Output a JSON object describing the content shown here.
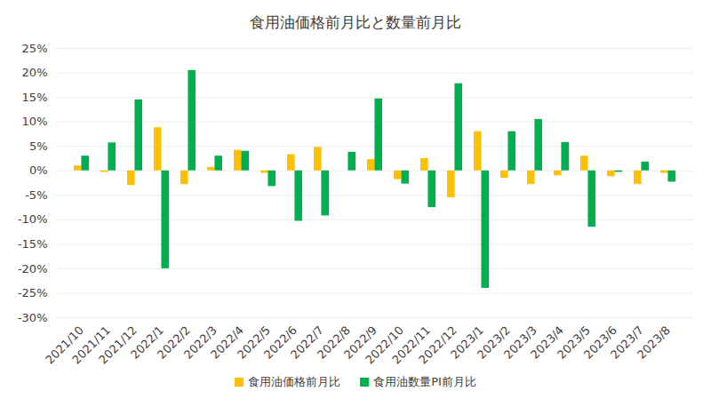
{
  "chart_data": {
    "type": "bar",
    "title": "食用油価格前月比と数量前月比",
    "categories": [
      "2021/10",
      "2021/11",
      "2021/12",
      "2022/1",
      "2022/2",
      "2022/3",
      "2022/4",
      "2022/5",
      "2022/6",
      "2022/7",
      "2022/8",
      "2022/9",
      "2022/10",
      "2022/11",
      "2022/12",
      "2023/1",
      "2023/2",
      "2023/3",
      "2023/4",
      "2023/5",
      "2023/6",
      "2023/7",
      "2023/8"
    ],
    "series": [
      {
        "name": "食用油価格前月比",
        "color": "#FFC000",
        "values": [
          1,
          -0.3,
          -3,
          8.8,
          -2.8,
          0.7,
          4.2,
          -0.5,
          3.3,
          4.8,
          0,
          2.3,
          -1.8,
          2.5,
          -5.5,
          8,
          -1.5,
          -2.8,
          -1,
          3,
          -1.2,
          -2.8,
          -0.5
        ]
      },
      {
        "name": "食用油数量PI前月比",
        "color": "#00B050",
        "values": [
          3,
          5.7,
          14.5,
          -20,
          20.5,
          3,
          4,
          -3.2,
          -10.3,
          -9.2,
          3.8,
          14.7,
          -2.7,
          -7.5,
          17.8,
          -24,
          8,
          10.5,
          5.8,
          -11.5,
          -0.3,
          1.8,
          -2.3
        ]
      }
    ],
    "ylim": [
      -30,
      25
    ],
    "yticks": [
      {
        "value": -30,
        "label": "-30%"
      },
      {
        "value": -25,
        "label": "-25%"
      },
      {
        "value": -20,
        "label": "-20%"
      },
      {
        "value": -15,
        "label": "-15%"
      },
      {
        "value": -10,
        "label": "-10%"
      },
      {
        "value": -5,
        "label": "-5%"
      },
      {
        "value": 0,
        "label": "0%"
      },
      {
        "value": 5,
        "label": "5%"
      },
      {
        "value": 10,
        "label": "10%"
      },
      {
        "value": 15,
        "label": "15%"
      },
      {
        "value": 20,
        "label": "20%"
      },
      {
        "value": 25,
        "label": "25%"
      }
    ],
    "grid": true,
    "legend": "bottom"
  }
}
